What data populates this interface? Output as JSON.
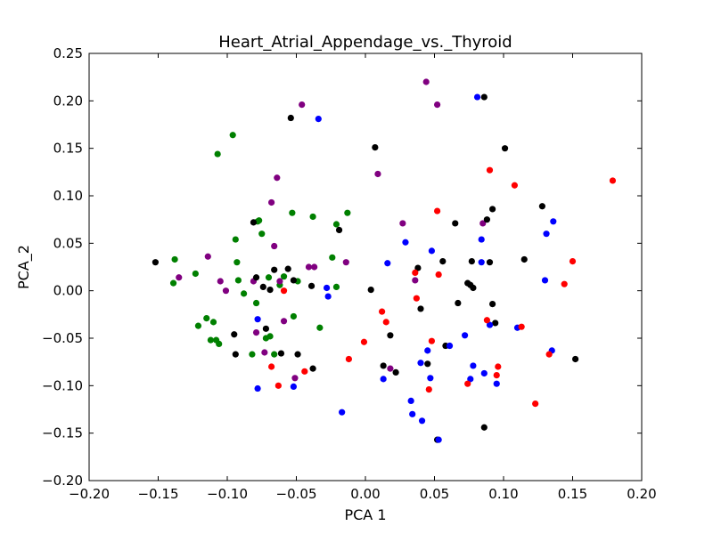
{
  "chart_data": {
    "type": "scatter",
    "title": "Heart_Atrial_Appendage_vs._Thyroid",
    "xlabel": "PCA 1",
    "ylabel": "PCA_2",
    "xlim": [
      -0.2,
      0.2
    ],
    "ylim": [
      -0.2,
      0.25
    ],
    "xticks": [
      "−0.20",
      "−0.15",
      "−0.10",
      "−0.05",
      "0.00",
      "0.05",
      "0.10",
      "0.15",
      "0.20"
    ],
    "xtick_values": [
      -0.2,
      -0.15,
      -0.1,
      -0.05,
      0.0,
      0.05,
      0.1,
      0.15,
      0.2
    ],
    "yticks": [
      "−0.20",
      "−0.15",
      "−0.10",
      "−0.05",
      "0.00",
      "0.05",
      "0.10",
      "0.15",
      "0.20",
      "0.25"
    ],
    "ytick_values": [
      -0.2,
      -0.15,
      -0.1,
      -0.05,
      0.0,
      0.05,
      0.1,
      0.15,
      0.2,
      0.25
    ],
    "grid": false,
    "series": [
      {
        "color": "#008000",
        "x": [
          -0.096,
          -0.107,
          -0.138,
          -0.139,
          -0.123,
          -0.121,
          -0.115,
          -0.112,
          -0.108,
          -0.11,
          -0.106,
          -0.094,
          -0.093,
          -0.092,
          -0.088,
          -0.082,
          -0.079,
          -0.078,
          -0.077,
          -0.075,
          -0.072,
          -0.07,
          -0.069,
          -0.066,
          -0.062,
          -0.059,
          -0.053,
          -0.052,
          -0.049,
          -0.038,
          -0.033,
          -0.024,
          -0.021,
          -0.021,
          -0.013
        ],
        "y": [
          0.164,
          0.144,
          0.033,
          0.008,
          0.018,
          -0.037,
          -0.029,
          -0.052,
          -0.052,
          -0.033,
          -0.056,
          0.054,
          0.03,
          0.011,
          -0.003,
          -0.067,
          -0.013,
          0.073,
          0.074,
          0.06,
          -0.05,
          0.014,
          -0.048,
          -0.067,
          0.006,
          0.015,
          0.082,
          -0.027,
          0.01,
          0.078,
          -0.039,
          0.035,
          0.004,
          0.07,
          0.082
        ]
      },
      {
        "color": "#800080",
        "x": [
          -0.135,
          -0.114,
          -0.105,
          -0.101,
          -0.081,
          -0.079,
          -0.073,
          -0.068,
          -0.066,
          -0.064,
          -0.062,
          -0.059,
          -0.051,
          -0.046,
          -0.041,
          -0.037,
          -0.014,
          0.009,
          0.018,
          0.027,
          0.036,
          0.044,
          0.052,
          0.085
        ],
        "y": [
          0.014,
          0.036,
          0.01,
          0.0,
          0.01,
          -0.044,
          -0.065,
          0.093,
          0.047,
          0.119,
          0.01,
          -0.032,
          -0.092,
          0.196,
          0.025,
          0.025,
          0.03,
          0.123,
          -0.082,
          0.071,
          0.011,
          0.22,
          0.196,
          0.071
        ]
      },
      {
        "color": "#000000",
        "x": [
          -0.152,
          -0.095,
          -0.094,
          -0.081,
          -0.079,
          -0.074,
          -0.072,
          -0.069,
          -0.066,
          -0.061,
          -0.056,
          -0.054,
          -0.052,
          -0.049,
          -0.039,
          -0.038,
          -0.019,
          0.004,
          0.007,
          0.013,
          0.018,
          0.022,
          0.038,
          0.04,
          0.045,
          0.052,
          0.056,
          0.058,
          0.065,
          0.067,
          0.074,
          0.076,
          0.077,
          0.078,
          0.086,
          0.086,
          0.088,
          0.09,
          0.092,
          0.092,
          0.094,
          0.101,
          0.115,
          0.128,
          0.152
        ],
        "y": [
          0.03,
          -0.046,
          -0.067,
          0.072,
          0.014,
          0.004,
          -0.04,
          0.001,
          0.022,
          -0.066,
          0.023,
          0.182,
          0.011,
          -0.067,
          0.005,
          -0.082,
          0.064,
          0.001,
          0.151,
          -0.079,
          -0.047,
          -0.086,
          0.024,
          -0.019,
          -0.077,
          -0.157,
          0.031,
          -0.058,
          0.071,
          -0.013,
          0.008,
          0.006,
          0.031,
          0.003,
          0.204,
          -0.144,
          0.075,
          0.03,
          -0.014,
          0.086,
          -0.034,
          0.15,
          0.033,
          0.089,
          -0.072
        ]
      },
      {
        "color": "#0000ff",
        "x": [
          -0.078,
          -0.078,
          -0.052,
          -0.034,
          -0.028,
          -0.027,
          -0.017,
          0.013,
          0.016,
          0.029,
          0.033,
          0.034,
          0.04,
          0.041,
          0.045,
          0.047,
          0.048,
          0.053,
          0.061,
          0.072,
          0.076,
          0.078,
          0.081,
          0.084,
          0.084,
          0.086,
          0.09,
          0.095,
          0.11,
          0.13,
          0.131,
          0.135,
          0.136
        ],
        "y": [
          -0.03,
          -0.103,
          -0.101,
          0.181,
          0.003,
          -0.006,
          -0.128,
          -0.093,
          0.029,
          0.051,
          -0.116,
          -0.13,
          -0.076,
          -0.137,
          -0.063,
          -0.092,
          0.042,
          -0.157,
          -0.058,
          -0.047,
          -0.093,
          -0.079,
          0.204,
          0.054,
          0.03,
          -0.087,
          -0.036,
          -0.098,
          -0.039,
          0.011,
          0.06,
          -0.063,
          0.073
        ]
      },
      {
        "color": "#ff0000",
        "x": [
          -0.068,
          -0.063,
          -0.059,
          -0.044,
          -0.012,
          -0.001,
          0.012,
          0.015,
          0.036,
          0.037,
          0.046,
          0.048,
          0.052,
          0.053,
          0.074,
          0.088,
          0.09,
          0.095,
          0.096,
          0.108,
          0.113,
          0.123,
          0.133,
          0.144,
          0.15,
          0.179
        ],
        "y": [
          -0.08,
          -0.1,
          0.0,
          -0.085,
          -0.072,
          -0.054,
          -0.022,
          -0.033,
          0.019,
          -0.008,
          -0.104,
          -0.053,
          0.084,
          0.017,
          -0.098,
          -0.031,
          0.127,
          -0.089,
          -0.08,
          0.111,
          -0.038,
          -0.119,
          -0.067,
          0.007,
          0.031,
          0.116
        ]
      }
    ]
  }
}
